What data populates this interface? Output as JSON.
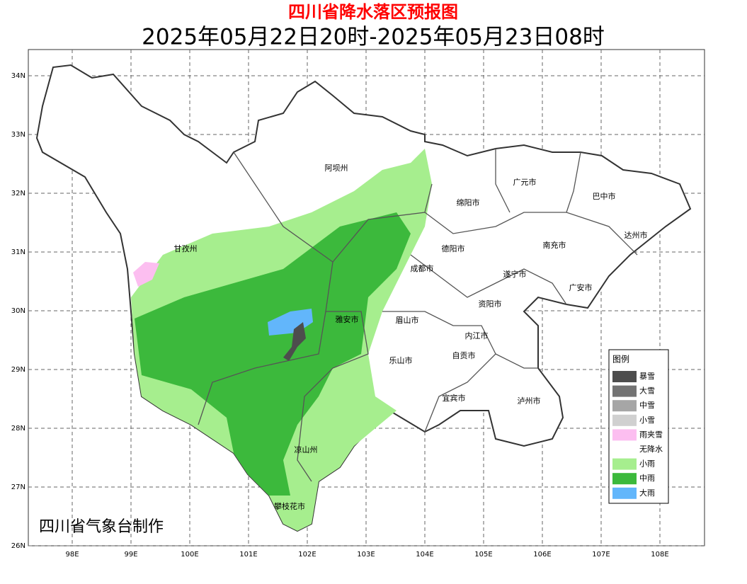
{
  "header": {
    "title": "四川省降水落区预报图",
    "subtitle": "2025年05月22日20时-2025年05月23日08时"
  },
  "map": {
    "lon_labels": [
      "98E",
      "99E",
      "100E",
      "101E",
      "102E",
      "103E",
      "104E",
      "105E",
      "106E",
      "107E",
      "108E"
    ],
    "lat_labels": [
      "34N",
      "33N",
      "32N",
      "31N",
      "30N",
      "29N",
      "28N",
      "27N",
      "26N"
    ],
    "regions": [
      "阿坝州",
      "广元市",
      "巴中市",
      "绵阳市",
      "德阳市",
      "甘孜州",
      "南充市",
      "达州市",
      "成都市",
      "遂宁市",
      "广安市",
      "资阳市",
      "雅安市",
      "眉山市",
      "内江市",
      "自贡市",
      "乐山市",
      "宜宾市",
      "泸州市",
      "凉山州",
      "攀枝花市"
    ]
  },
  "legend": {
    "title": "图例",
    "items": [
      {
        "label": "暴雪",
        "color": "#4d4d4d"
      },
      {
        "label": "大雪",
        "color": "#737373"
      },
      {
        "label": "中雪",
        "color": "#a6a6a6"
      },
      {
        "label": "小雪",
        "color": "#d0d0d0"
      },
      {
        "label": "雨夹雪",
        "color": "#fcbef0"
      },
      {
        "label": "无降水",
        "color": "#ffffff"
      },
      {
        "label": "小雨",
        "color": "#a6ee8e"
      },
      {
        "label": "中雨",
        "color": "#3cb93c"
      },
      {
        "label": "大雨",
        "color": "#62b6fb"
      }
    ]
  },
  "credit": "四川省气象台制作"
}
